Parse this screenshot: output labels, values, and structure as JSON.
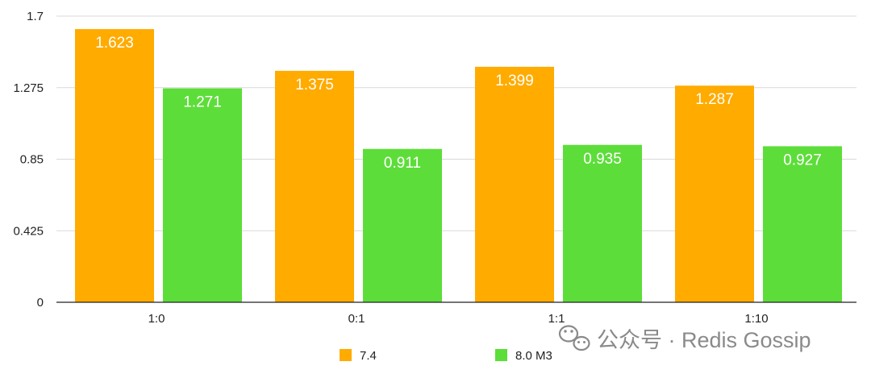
{
  "chart_data": {
    "type": "bar",
    "title": "",
    "xlabel": "",
    "ylabel": "",
    "categories": [
      "1:0",
      "0:1",
      "1:1",
      "1:10"
    ],
    "series": [
      {
        "name": "7.4",
        "color": "#FFAB00",
        "values": [
          1.623,
          1.375,
          1.399,
          1.287
        ]
      },
      {
        "name": "8.0 M3",
        "color": "#5DDD3A",
        "values": [
          1.271,
          0.911,
          0.935,
          0.927
        ]
      }
    ],
    "ylim": [
      0,
      1.7
    ],
    "yticks": [
      "0",
      "0.425",
      "0.85",
      "1.275",
      "1.7"
    ],
    "yticks_values": [
      0,
      0.425,
      0.85,
      1.275,
      1.7
    ],
    "grid": true,
    "legend_position": "bottom"
  },
  "watermark": {
    "icon": "wechat-icon",
    "text": "公众号 · Redis Gossip"
  }
}
